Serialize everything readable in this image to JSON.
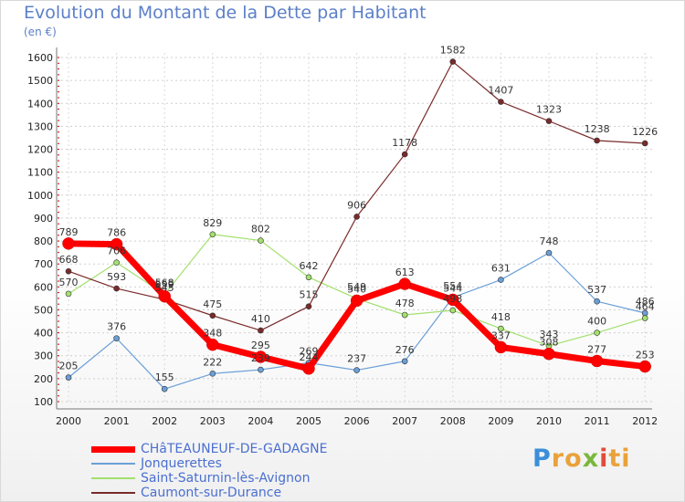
{
  "title": "Evolution du Montant de la Dette par Habitant",
  "subtitle": "(en €)",
  "logo_text": "Proxiti",
  "chart_data": {
    "type": "line",
    "title": "Evolution du Montant de la Dette par Habitant",
    "ylabel": "(en €)",
    "xlabel": "",
    "x": [
      "2000",
      "2001",
      "2002",
      "2003",
      "2004",
      "2005",
      "2006",
      "2007",
      "2008",
      "2009",
      "2010",
      "2011",
      "2012"
    ],
    "ylim": [
      100,
      1600
    ],
    "yticks": [
      "100",
      "200",
      "300",
      "400",
      "500",
      "600",
      "700",
      "800",
      "900",
      "1000",
      "1100",
      "1200",
      "1300",
      "1400",
      "1500",
      "1600"
    ],
    "grid": true,
    "legend_position": "bottom-left",
    "series": [
      {
        "name": "CHâTEAUNEUF-DE-GADAGNE",
        "color": "#ff0000",
        "values": [
          789,
          786,
          559,
          348,
          295,
          244,
          540,
          613,
          544,
          337,
          308,
          277,
          253
        ],
        "labels": [
          "789",
          "786",
          "559",
          "348",
          "295",
          "244",
          "540",
          "613",
          "544",
          "337",
          "308",
          "277",
          "253"
        ]
      },
      {
        "name": "Jonquerettes",
        "color": "#6a9fd8",
        "values": [
          205,
          376,
          155,
          222,
          239,
          269,
          237,
          276,
          554,
          631,
          748,
          537,
          486
        ],
        "labels": [
          "205",
          "376",
          "155",
          "222",
          "239",
          "269",
          "237",
          "276",
          "554",
          "631",
          "748",
          "537",
          "486"
        ]
      },
      {
        "name": "Saint-Saturnin-lès-Avignon",
        "color": "#a3e06e",
        "values": [
          570,
          706,
          568,
          829,
          802,
          642,
          549,
          478,
          498,
          418,
          343,
          400,
          464
        ],
        "labels": [
          "570",
          "706",
          "568",
          "829",
          "802",
          "642",
          "549",
          "478",
          "498",
          "418",
          "343",
          "400",
          "464"
        ]
      },
      {
        "name": "Caumont-sur-Durance",
        "color": "#7a2a2a",
        "values": [
          668,
          593,
          545,
          475,
          410,
          515,
          906,
          1178,
          1582,
          1407,
          1323,
          1238,
          1226
        ],
        "labels": [
          "668",
          "593",
          "545",
          "475",
          "410",
          "515",
          "906",
          "1178",
          "1582",
          "1407",
          "1323",
          "1238",
          "1226"
        ]
      }
    ]
  }
}
